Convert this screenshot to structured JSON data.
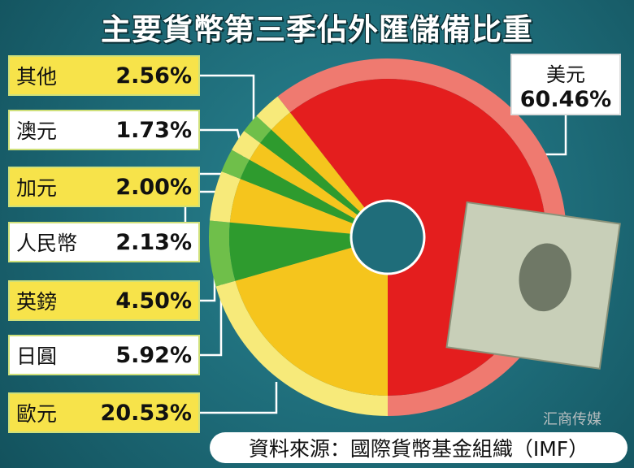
{
  "title": "主要貨幣第三季佔外匯儲備比重",
  "source": "資料來源：國際貨幣基金組織（IMF）",
  "watermark": "汇商传媒",
  "usd_label": {
    "name": "美元",
    "value": "60.46%"
  },
  "labels": [
    {
      "name": "其他",
      "value": "2.56%"
    },
    {
      "name": "澳元",
      "value": "1.73%"
    },
    {
      "name": "加元",
      "value": "2.00%"
    },
    {
      "name": "人民幣",
      "value": "2.13%"
    },
    {
      "name": "英鎊",
      "value": "4.50%"
    },
    {
      "name": "日圓",
      "value": "5.92%"
    },
    {
      "name": "歐元",
      "value": "20.53%"
    }
  ],
  "chart_data": {
    "type": "pie",
    "title": "主要貨幣第三季佔外匯儲備比重",
    "donut": true,
    "categories": [
      "美元",
      "歐元",
      "日圓",
      "英鎊",
      "人民幣",
      "加元",
      "澳元",
      "其他"
    ],
    "values": [
      60.46,
      20.53,
      5.92,
      4.5,
      2.13,
      2.0,
      1.73,
      2.56
    ],
    "unit": "%",
    "colors": [
      "#e41e1e",
      "#f5c51d",
      "#2e9b2e",
      "#f5c51d",
      "#2e9b2e",
      "#f5c51d",
      "#2e9b2e",
      "#f5c51d"
    ],
    "ring_colors": [
      "#ef7a70",
      "#f7ea7a",
      "#6fbf4a",
      "#f7ea7a",
      "#6fbf4a",
      "#f7ea7a",
      "#6fbf4a",
      "#f7ea7a"
    ]
  }
}
